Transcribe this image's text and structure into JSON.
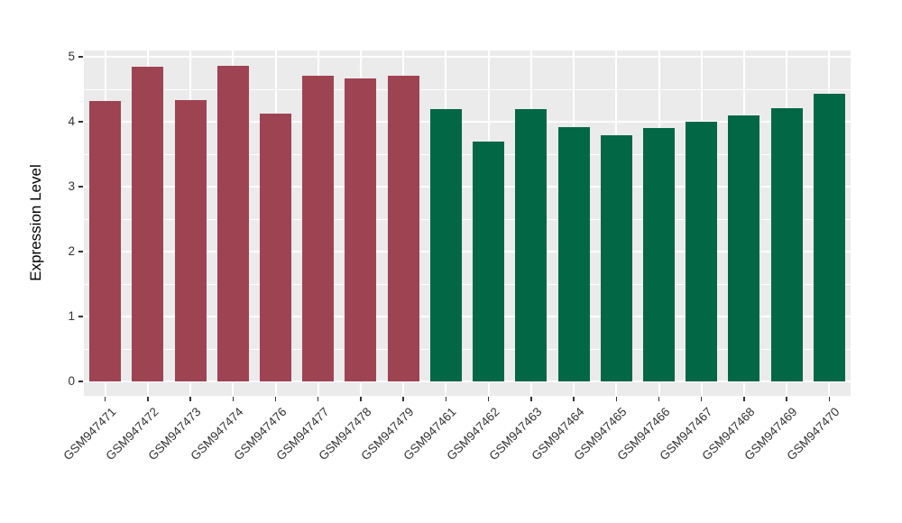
{
  "chart_data": {
    "type": "bar",
    "title": "",
    "xlabel": "",
    "ylabel": "Expression Level",
    "ylim": [
      0,
      5
    ],
    "yticks": [
      "0",
      "1",
      "2",
      "3",
      "4",
      "5"
    ],
    "grid": "on",
    "legend_position": "none",
    "panel_background": "#EBEBEB",
    "gridline_color": "#FFFFFF",
    "axis_text_color": "#333333",
    "axis_title_color": "#000000",
    "categories": [
      "GSM947471",
      "GSM947472",
      "GSM947473",
      "GSM947474",
      "GSM947476",
      "GSM947477",
      "GSM947478",
      "GSM947479",
      "GSM947461",
      "GSM947462",
      "GSM947463",
      "GSM947464",
      "GSM947465",
      "GSM947466",
      "GSM947467",
      "GSM947468",
      "GSM947469",
      "GSM947470"
    ],
    "values": [
      4.32,
      4.85,
      4.33,
      4.86,
      4.12,
      4.71,
      4.67,
      4.71,
      4.19,
      3.7,
      4.19,
      3.92,
      3.79,
      3.9,
      4.0,
      4.1,
      4.21,
      4.43
    ],
    "bar_colors": [
      "#9E4352",
      "#9E4352",
      "#9E4352",
      "#9E4352",
      "#9E4352",
      "#9E4352",
      "#9E4352",
      "#9E4352",
      "#026745",
      "#026745",
      "#026745",
      "#026745",
      "#026745",
      "#026745",
      "#026745",
      "#026745",
      "#026745",
      "#026745"
    ]
  }
}
